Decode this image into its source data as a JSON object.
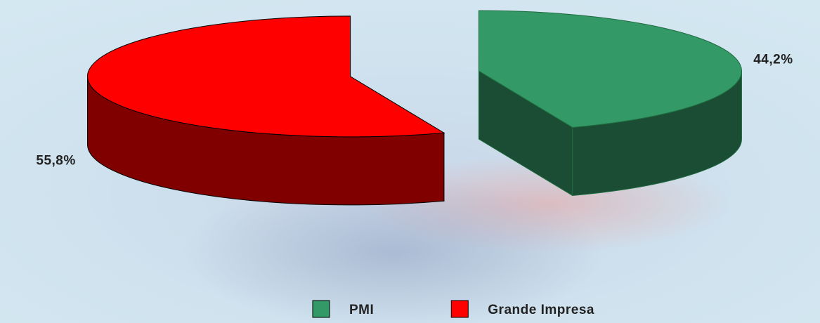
{
  "chart_data": {
    "type": "pie3d",
    "categories": [
      "PMI",
      "Grande Impresa"
    ],
    "values": [
      44.2,
      55.8
    ],
    "value_labels": [
      "44,2%",
      "55,8%"
    ],
    "colors": [
      "#339966",
      "#ff0000"
    ],
    "legend": "bottom"
  }
}
